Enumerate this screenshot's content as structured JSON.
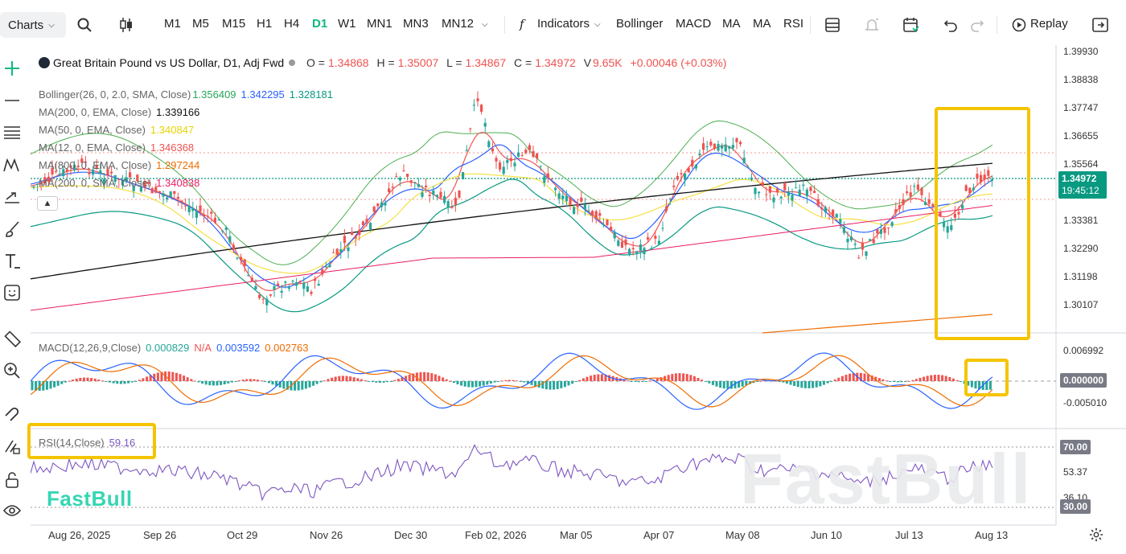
{
  "toolbar": {
    "charts_label": "Charts",
    "timeframes": [
      "M1",
      "M5",
      "M15",
      "H1",
      "H4",
      "D1",
      "W1",
      "MN1",
      "MN3",
      "MN12"
    ],
    "active_timeframe": "D1",
    "indicators_label": "Indicators",
    "quick_indicators": [
      "Bollinger",
      "MACD",
      "MA",
      "MA",
      "RSI"
    ],
    "replay_label": "Replay"
  },
  "symbol": {
    "name": "Great Britain Pound vs US Dollar, D1, Adj Fwd",
    "o_label": "O =",
    "o": "1.34868",
    "h_label": "H =",
    "h": "1.35007",
    "l_label": "L =",
    "l": "1.34867",
    "c_label": "C =",
    "c": "1.34972",
    "v_label": "V",
    "v": "9.65K",
    "change": "+0.00046 (+0.03%)"
  },
  "studies": {
    "bollinger": {
      "label": "Bollinger(26, 0, 2.0, SMA, Close)",
      "v1": "1.356409",
      "v2": "1.342295",
      "v3": "1.328181"
    },
    "ma200": {
      "label": "MA(200, 0, EMA, Close)",
      "value": "1.339166"
    },
    "ma50": {
      "label": "MA(50, 0, EMA, Close)",
      "value": "1.340847"
    },
    "ma12": {
      "label": "MA(12, 0, EMA, Close)",
      "value": "1.346368"
    },
    "ma800": {
      "label": "MA(800, 0, EMA, Close)",
      "value": "1.297244"
    },
    "ma_sma": {
      "label": "MA(200, 0, SMA, Close)",
      "value": "1.340838"
    }
  },
  "macd": {
    "label": "MACD(12,26,9,Close)",
    "v1": "0.000829",
    "v2": "N/A",
    "v3": "0.003592",
    "v4": "0.002763"
  },
  "rsi": {
    "label": "RSI(14,Close)",
    "value": "59.16"
  },
  "price_axis": [
    "1.39930",
    "1.38838",
    "1.37747",
    "1.36655",
    "1.35564",
    "1.33381",
    "1.32290",
    "1.31198",
    "1.30107"
  ],
  "current_price": "1.34972",
  "countdown": "19:45:12",
  "macd_axis": [
    "0.006992",
    "-0.005010"
  ],
  "macd_zero": "0.000000",
  "rsi_axis": {
    "upper": "70.00",
    "mid": "53.37",
    "low": "36.10",
    "lower": "30.00"
  },
  "dates": [
    "Aug 26, 2025",
    "Sep 26",
    "Oct 29",
    "Nov 26",
    "Dec 30",
    "Feb 02, 2026",
    "Mar 05",
    "Apr 07",
    "May 08",
    "Jun 10",
    "Jul 13",
    "Aug 13"
  ],
  "branding": {
    "logo": "FastBull",
    "watermark": "FastBull"
  },
  "colors": {
    "up": "#26a69a",
    "down": "#ef5350",
    "active": "#11b981",
    "highlight": "#f5c400"
  }
}
